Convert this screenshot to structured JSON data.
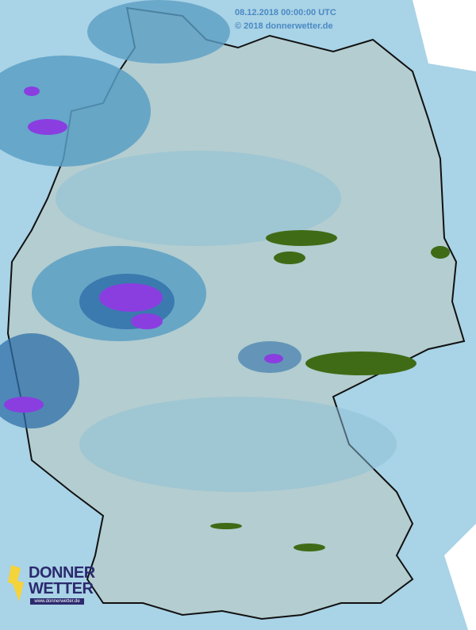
{
  "map": {
    "timestamp": "08.12.2018 00:00:00 UTC",
    "copyright": "© 2018 donnerwetter.de",
    "colors": {
      "background": "#a9d3e6",
      "land": "#b3cdd0",
      "light_precip": "#8cc0d6",
      "moderate_precip": "#5b9fc4",
      "heavy_precip": "#2f6fa8",
      "intense_precip": "#8a3ee0",
      "snow": "#3f6b16"
    }
  },
  "logo": {
    "line1": "DONNER",
    "line2": "WETTER",
    "url": "www.donnerwetter.de",
    "bolt_color": "#f5d33a"
  }
}
